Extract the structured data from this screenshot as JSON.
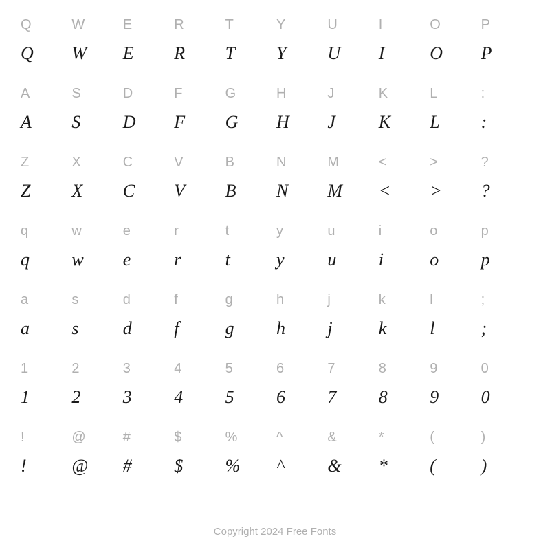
{
  "chart": {
    "type": "font-specimen-grid",
    "columns": 10,
    "rows": 7,
    "background_color": "#ffffff",
    "ref_style": {
      "font_family": "sans-serif",
      "color": "#b0b0b0",
      "font_size": 20,
      "font_weight": 400
    },
    "specimen_style": {
      "font_family": "serif",
      "font_style": "italic",
      "color": "#1a1a1a",
      "font_size": 26,
      "font_weight": 500
    },
    "rows_data": [
      [
        "Q",
        "W",
        "E",
        "R",
        "T",
        "Y",
        "U",
        "I",
        "O",
        "P"
      ],
      [
        "A",
        "S",
        "D",
        "F",
        "G",
        "H",
        "J",
        "K",
        "L",
        ":"
      ],
      [
        "Z",
        "X",
        "C",
        "V",
        "B",
        "N",
        "M",
        "<",
        ">",
        "?"
      ],
      [
        "q",
        "w",
        "e",
        "r",
        "t",
        "y",
        "u",
        "i",
        "o",
        "p"
      ],
      [
        "a",
        "s",
        "d",
        "f",
        "g",
        "h",
        "j",
        "k",
        "l",
        ";"
      ],
      [
        "1",
        "2",
        "3",
        "4",
        "5",
        "6",
        "7",
        "8",
        "9",
        "0"
      ],
      [
        "!",
        "@",
        "#",
        "$",
        "%",
        "^",
        "&",
        "*",
        "(",
        ")"
      ]
    ]
  },
  "footer": {
    "text": "Copyright 2024 Free Fonts",
    "color": "#b0b0b0",
    "font_size": 15
  }
}
